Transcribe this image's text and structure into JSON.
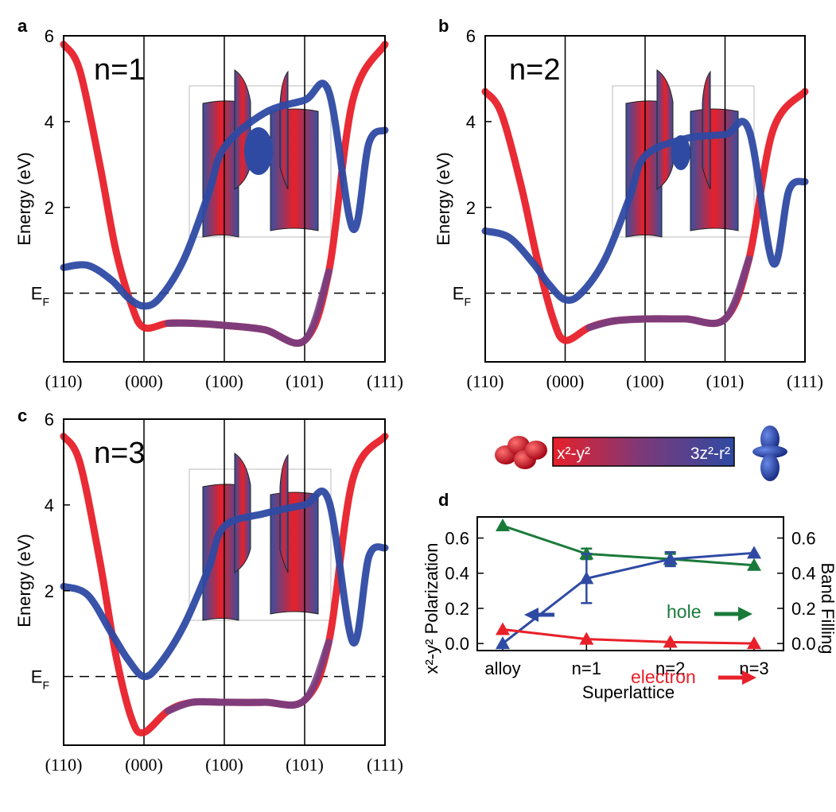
{
  "colors": {
    "red": "#e8202a",
    "blue": "#2e4aa3",
    "green": "#1a7a3a"
  },
  "legend": {
    "left_label": "x²-y²",
    "right_label": "3z²-r²"
  },
  "chart_data": [
    {
      "panel": "a",
      "type": "line",
      "label": "n=1",
      "ylabel": "Energy (eV)",
      "ylim": [
        -1.6,
        6
      ],
      "yticks": [
        2,
        4,
        6
      ],
      "ef_label": "EF",
      "kpoints": [
        "(110)",
        "(000)",
        "(100)",
        "(101)",
        "(111)"
      ],
      "series": [
        {
          "color": "red",
          "x": [
            0,
            0.2,
            0.45,
            0.65,
            0.85,
            1,
            1.3,
            1.6,
            2,
            2.5,
            3,
            3.3,
            3.6,
            4
          ],
          "y": [
            5.8,
            5.2,
            3.0,
            1.0,
            -0.3,
            -0.8,
            -0.7,
            -0.7,
            -0.75,
            -0.85,
            -1.1,
            0.5,
            4.5,
            5.8
          ]
        },
        {
          "color": "blue",
          "x": [
            0,
            0.3,
            0.6,
            0.8,
            1,
            1.2,
            1.5,
            1.8,
            2,
            2.5,
            3,
            3.3,
            3.6,
            3.8,
            4
          ],
          "y": [
            0.6,
            0.65,
            0.3,
            -0.1,
            -0.3,
            -0.1,
            0.8,
            2.3,
            3.4,
            4.2,
            4.5,
            4.7,
            1.5,
            3.5,
            3.8
          ]
        }
      ]
    },
    {
      "panel": "b",
      "type": "line",
      "label": "n=2",
      "ylabel": "Energy (eV)",
      "ylim": [
        -1.6,
        6
      ],
      "yticks": [
        2,
        4,
        6
      ],
      "ef_label": "EF",
      "kpoints": [
        "(110)",
        "(000)",
        "(100)",
        "(101)",
        "(111)"
      ],
      "series": [
        {
          "color": "red",
          "x": [
            0,
            0.2,
            0.45,
            0.65,
            0.85,
            1,
            1.3,
            1.6,
            2,
            2.5,
            3,
            3.3,
            3.6,
            4
          ],
          "y": [
            4.7,
            4.2,
            2.5,
            0.8,
            -0.6,
            -1.1,
            -0.8,
            -0.65,
            -0.6,
            -0.6,
            -0.6,
            0.8,
            3.8,
            4.7
          ]
        },
        {
          "color": "blue",
          "x": [
            0,
            0.3,
            0.6,
            0.8,
            1,
            1.2,
            1.5,
            1.8,
            2,
            2.5,
            3,
            3.3,
            3.6,
            3.8,
            4
          ],
          "y": [
            1.45,
            1.3,
            0.7,
            0.2,
            -0.15,
            0.0,
            0.8,
            2.2,
            3.2,
            3.6,
            3.7,
            3.8,
            0.7,
            2.4,
            2.6
          ]
        }
      ]
    },
    {
      "panel": "c",
      "type": "line",
      "label": "n=3",
      "ylabel": "Energy (eV)",
      "ylim": [
        -1.6,
        6
      ],
      "yticks": [
        2,
        4,
        6
      ],
      "ef_label": "EF",
      "kpoints": [
        "(110)",
        "(000)",
        "(100)",
        "(101)",
        "(111)"
      ],
      "series": [
        {
          "color": "red",
          "x": [
            0,
            0.2,
            0.45,
            0.65,
            0.85,
            1,
            1.3,
            1.6,
            2,
            2.5,
            3,
            3.3,
            3.6,
            4
          ],
          "y": [
            5.6,
            5.0,
            2.7,
            0.5,
            -1.0,
            -1.3,
            -0.8,
            -0.6,
            -0.6,
            -0.6,
            -0.55,
            0.8,
            4.6,
            5.6
          ]
        },
        {
          "color": "blue",
          "x": [
            0,
            0.3,
            0.6,
            0.8,
            1,
            1.2,
            1.5,
            1.8,
            2,
            2.5,
            3,
            3.3,
            3.6,
            3.8,
            4
          ],
          "y": [
            2.1,
            1.9,
            1.0,
            0.4,
            0.0,
            0.3,
            1.2,
            2.5,
            3.5,
            3.8,
            4.0,
            4.1,
            0.8,
            2.8,
            3.0
          ]
        }
      ]
    },
    {
      "panel": "d",
      "type": "line",
      "categories": [
        "alloy",
        "n=1",
        "n=2",
        "n=3"
      ],
      "xlabel": "Superlattice",
      "ylabel": "x²-y² Polarization",
      "ylabel_right": "Band Filling",
      "ylim": [
        -0.04,
        0.72
      ],
      "yticks": [
        0.0,
        0.2,
        0.4,
        0.6
      ],
      "ylim_right": [
        -0.04,
        0.72
      ],
      "yticks_right": [
        0.0,
        0.2,
        0.4,
        0.6
      ],
      "series": [
        {
          "name": "hole",
          "color": "green",
          "axis": "right",
          "values": [
            0.67,
            0.51,
            0.48,
            0.445
          ],
          "errors": [
            0,
            0.03,
            0.03,
            0
          ]
        },
        {
          "color": "blue",
          "axis": "left",
          "values": [
            0.0,
            0.37,
            0.48,
            0.515
          ],
          "errors": [
            0,
            0.14,
            0.04,
            0
          ]
        },
        {
          "name": "electron",
          "color": "red",
          "axis": "right",
          "values": [
            0.08,
            0.025,
            0.008,
            0.0
          ],
          "errors": [
            0,
            0,
            0,
            0
          ]
        }
      ]
    }
  ]
}
